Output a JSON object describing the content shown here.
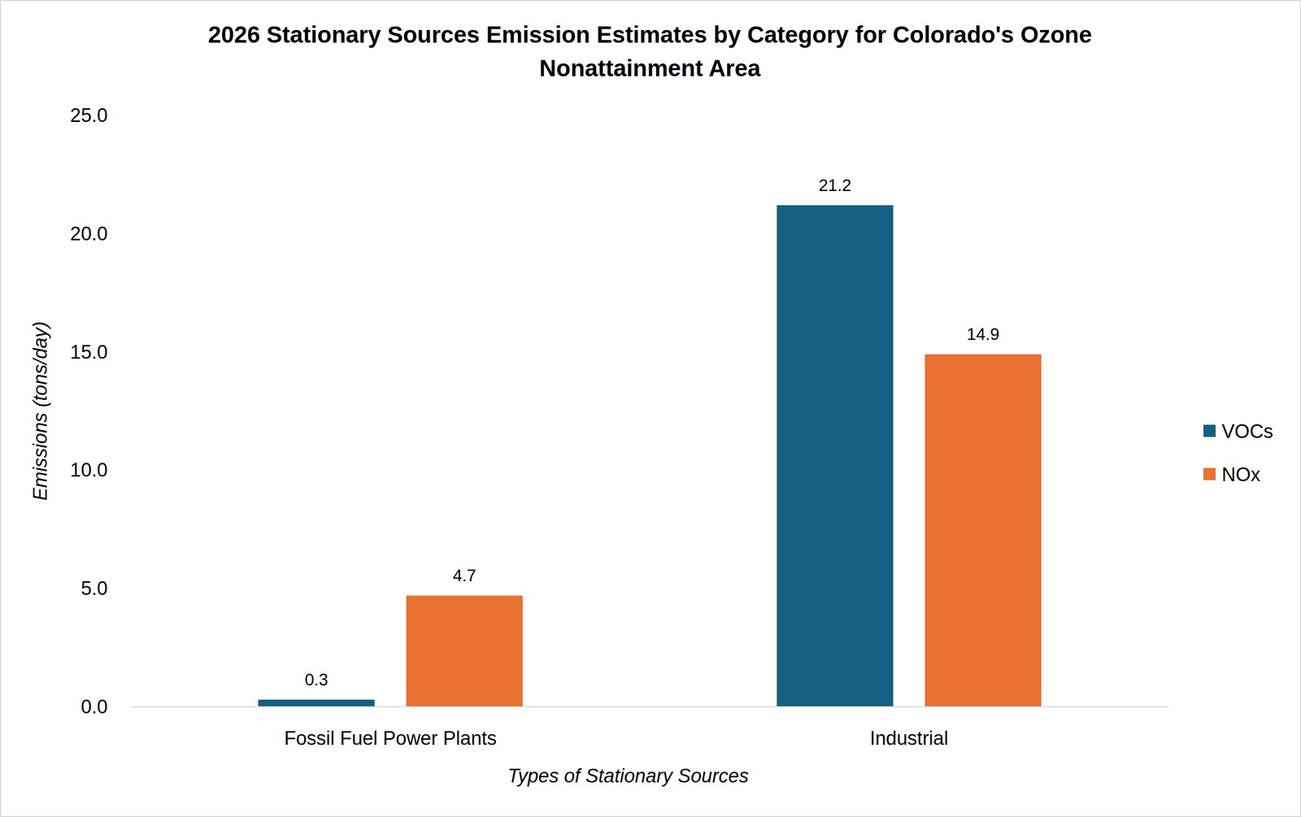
{
  "chart_data": {
    "type": "bar",
    "title": "2026 Stationary Sources Emission Estimates by Category for Colorado's Ozone Nonattainment Area",
    "x_label": "Types of Stationary Sources",
    "y_label": "Emissions (tons/day)",
    "categories": [
      "Fossil Fuel Power Plants",
      "Industrial"
    ],
    "series": [
      {
        "name": "VOCs",
        "color": "#156082",
        "values": [
          0.3,
          21.2
        ]
      },
      {
        "name": "NOx",
        "color": "#E97132",
        "values": [
          4.7,
          14.9
        ]
      }
    ],
    "ylim": [
      0,
      25
    ],
    "yticks": [
      {
        "value": 0,
        "label": "0.0"
      },
      {
        "value": 5,
        "label": "5.0"
      },
      {
        "value": 10,
        "label": "10.0"
      },
      {
        "value": 15,
        "label": "15.0"
      },
      {
        "value": 20,
        "label": "20.0"
      },
      {
        "value": 25,
        "label": "25.0"
      }
    ],
    "grid": false,
    "legend": "right",
    "data_labels": true
  }
}
